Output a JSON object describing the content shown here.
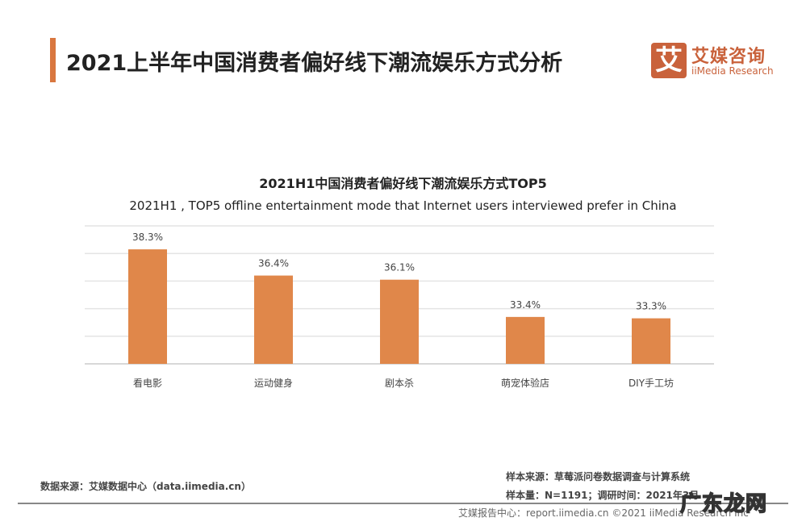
{
  "header": {
    "title": "2021上半年中国消费者偏好线下潮流娱乐方式分析"
  },
  "logo": {
    "mark": "艾",
    "cn": "艾媒咨询",
    "en": "iiMedia Research"
  },
  "chart_data": {
    "type": "bar",
    "title": "2021H1中国消费者偏好线下潮流娱乐方式TOP5",
    "subtitle": "2021H1 , TOP5 offline entertainment mode that Internet users interviewed prefer in China",
    "categories": [
      "看电影",
      "运动健身",
      "剧本杀",
      "萌宠体验店",
      "DIY手工坊"
    ],
    "values": [
      38.3,
      36.4,
      36.1,
      33.4,
      33.3
    ],
    "labels": [
      "38.3%",
      "36.4%",
      "36.1%",
      "33.4%",
      "33.3%"
    ],
    "ylim": [
      30,
      40
    ],
    "grid": true,
    "bar_color": "#e0874a",
    "xlabel": "",
    "ylabel": ""
  },
  "footer": {
    "source": "数据来源：艾媒数据中心（data.iimedia.cn）",
    "sample_source": "样本来源：草莓派问卷数据调查与计算系统",
    "sample_size": "样本量：N=1191；调研时间：2021年3月",
    "report": "艾媒报告中心：report.iimedia.cn  ©2021  iiMedia Research Inc",
    "watermark": "广东龙网"
  }
}
